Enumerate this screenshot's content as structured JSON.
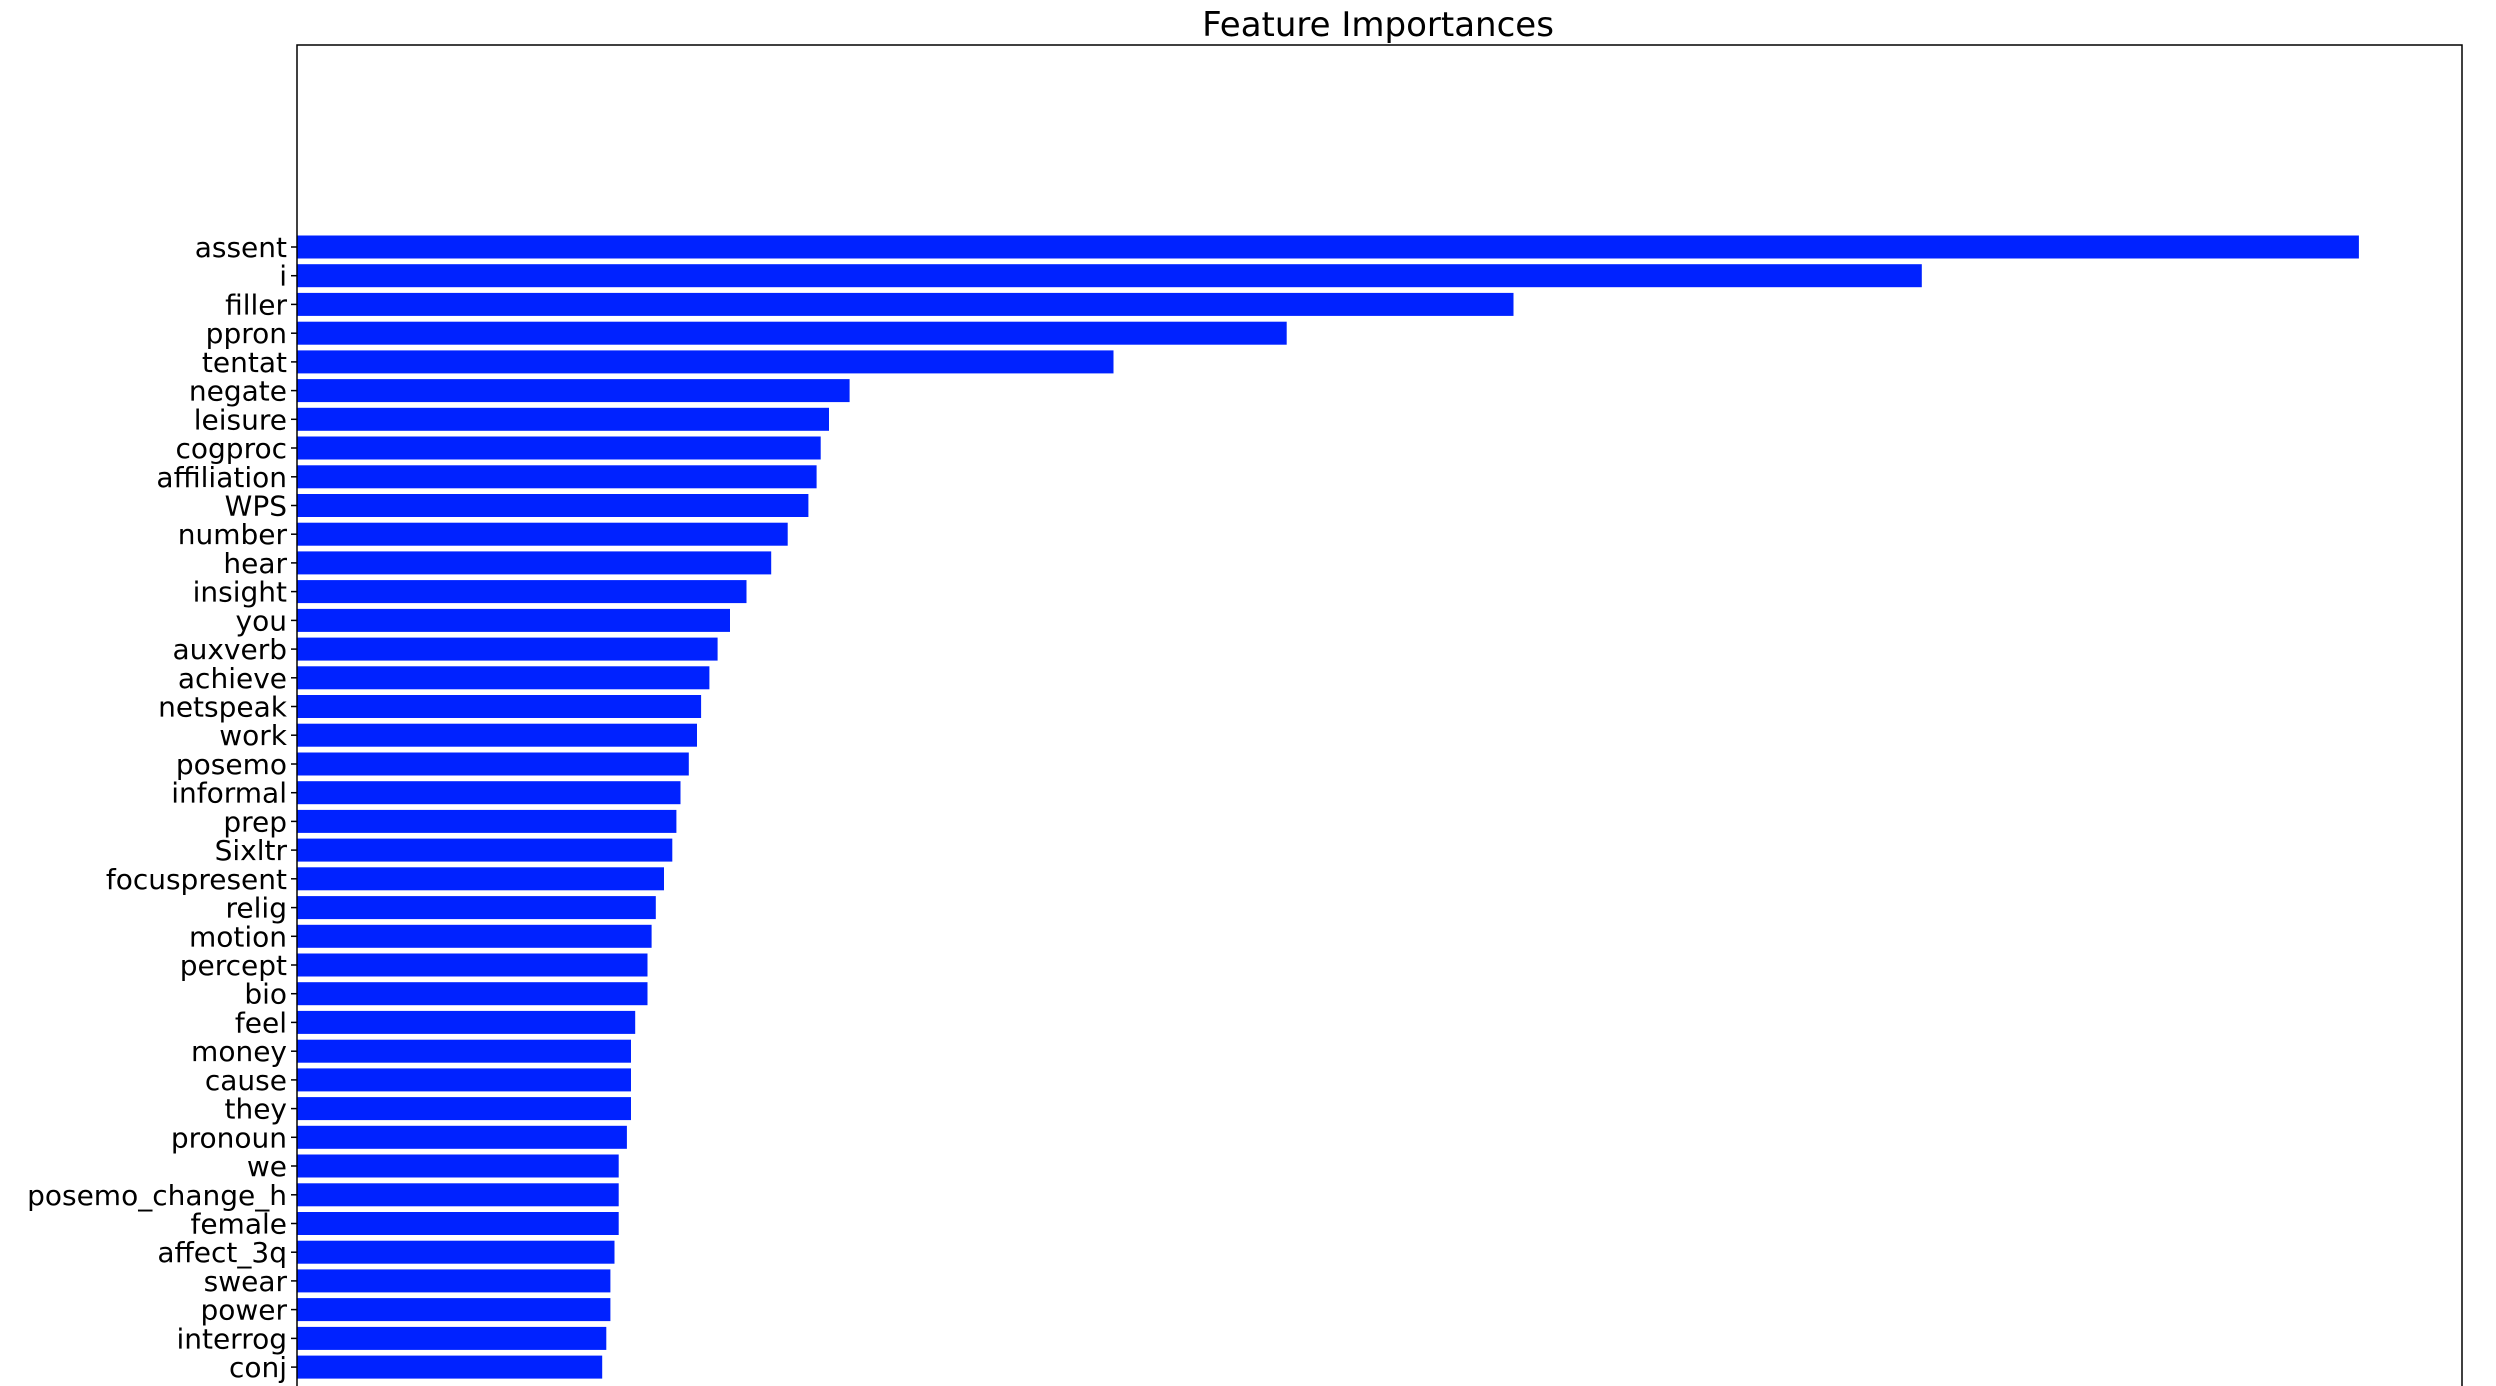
{
  "chart_data": {
    "type": "bar",
    "orientation": "horizontal",
    "title": "Feature Importances",
    "xlabel": "",
    "ylabel": "",
    "bar_color": "#0022ff",
    "grid": false,
    "x_ticks_visible": false,
    "xlim": [
      0,
      0.0525
    ],
    "categories": [
      "assent",
      "i",
      "filler",
      "ppron",
      "tentat",
      "negate",
      "leisure",
      "cogproc",
      "affiliation",
      "WPS",
      "number",
      "hear",
      "insight",
      "you",
      "auxverb",
      "achieve",
      "netspeak",
      "work",
      "posemo",
      "informal",
      "prep",
      "Sixltr",
      "focuspresent",
      "relig",
      "motion",
      "percept",
      "bio",
      "feel",
      "money",
      "cause",
      "they",
      "pronoun",
      "we",
      "posemo_change_h",
      "female",
      "affect_3q",
      "swear",
      "power",
      "interrog",
      "conj"
    ],
    "values": [
      0.05,
      0.0394,
      0.0295,
      0.024,
      0.0198,
      0.0134,
      0.0129,
      0.0127,
      0.0126,
      0.0124,
      0.0119,
      0.0115,
      0.0109,
      0.0105,
      0.0102,
      0.01,
      0.0098,
      0.0097,
      0.0095,
      0.0093,
      0.0092,
      0.0091,
      0.0089,
      0.0087,
      0.0086,
      0.0085,
      0.0085,
      0.0082,
      0.0081,
      0.0081,
      0.0081,
      0.008,
      0.0078,
      0.0078,
      0.0078,
      0.0077,
      0.0076,
      0.0076,
      0.0075,
      0.0074
    ]
  }
}
